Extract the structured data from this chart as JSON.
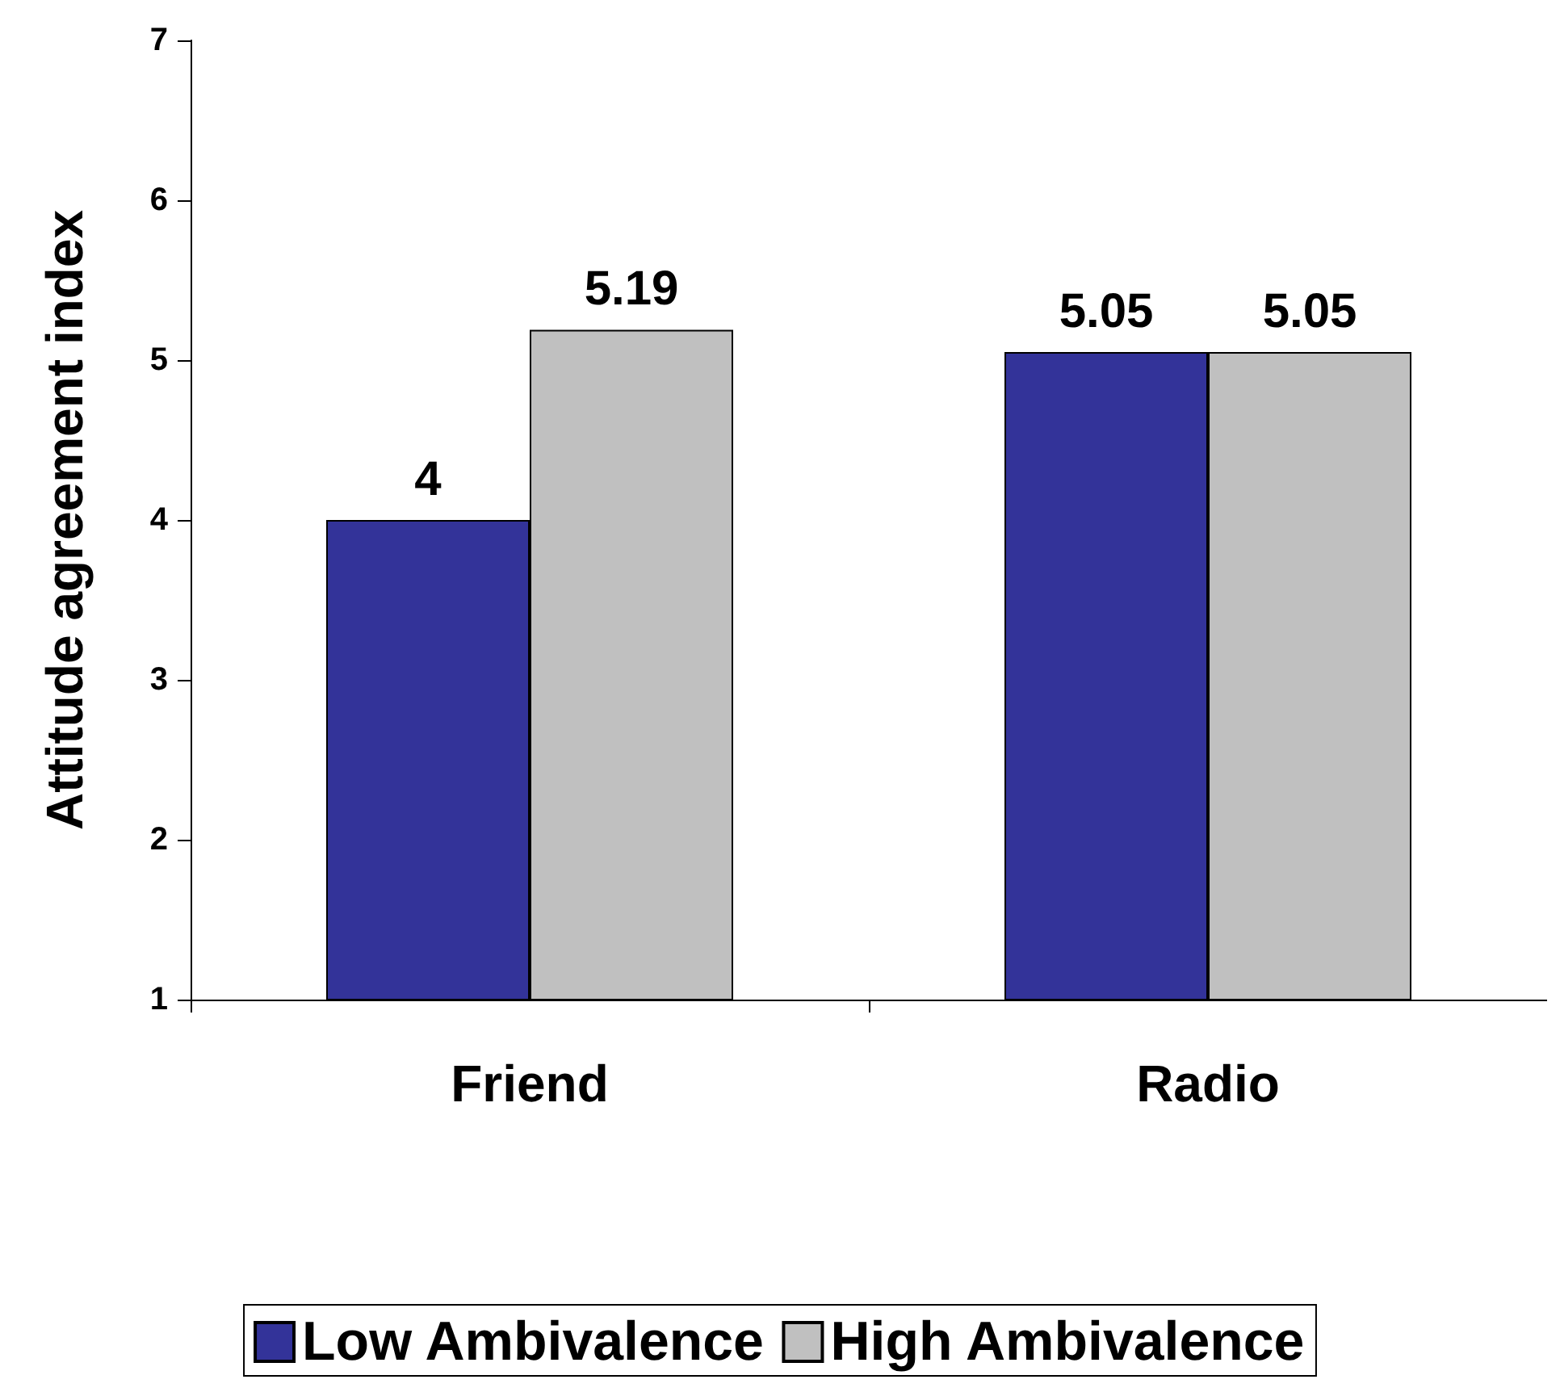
{
  "chart_data": {
    "type": "bar",
    "ylabel": "Attitude agreement index",
    "categories": [
      "Friend",
      "Radio"
    ],
    "series": [
      {
        "name": "Low Ambivalence",
        "color": "#333399",
        "values": [
          4,
          5.05
        ]
      },
      {
        "name": "High Ambivalence",
        "color": "#c0c0c0",
        "values": [
          5.19,
          5.05
        ]
      }
    ],
    "ylim": [
      1,
      7
    ],
    "yticks": [
      1,
      2,
      3,
      4,
      5,
      6,
      7
    ],
    "data_labels": true,
    "legend": "bottom",
    "grid": false
  }
}
